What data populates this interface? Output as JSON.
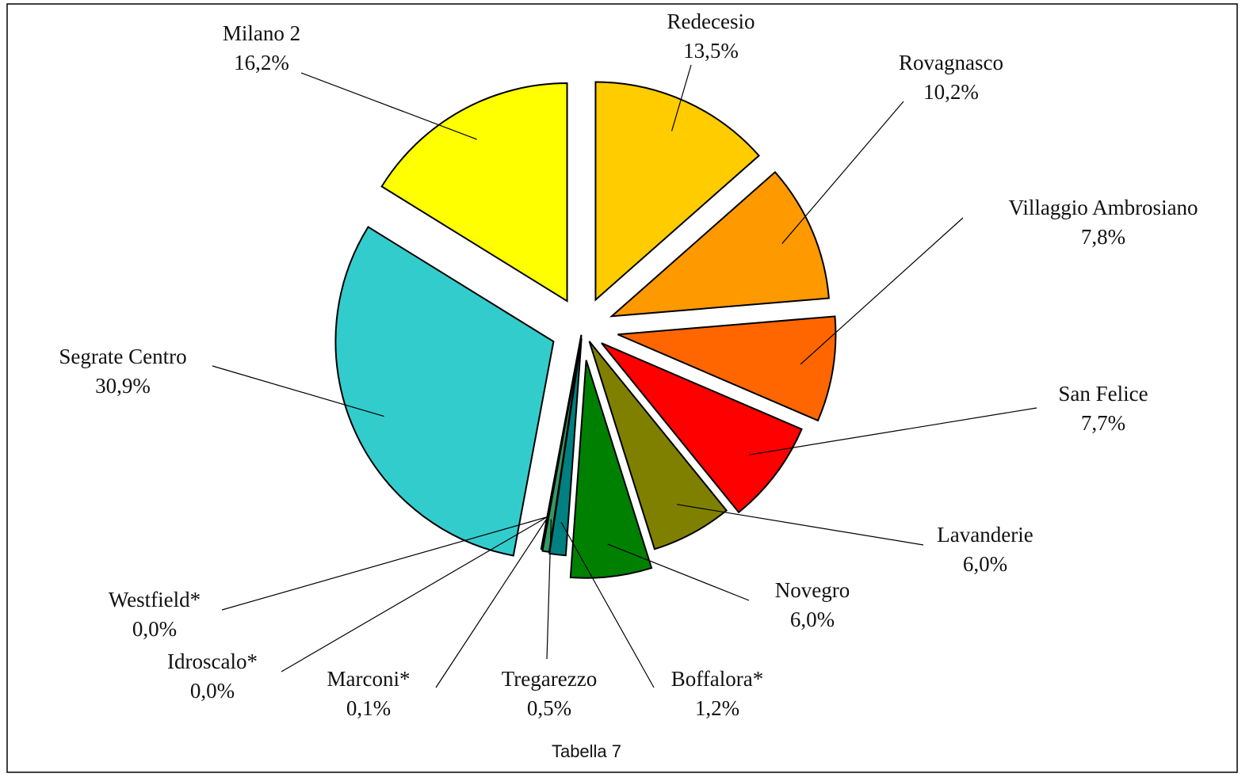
{
  "chart_data": {
    "type": "pie",
    "caption": "Tabella 7",
    "categories": [
      "Redecesio",
      "Rovagnasco",
      "Villaggio Ambrosiano",
      "San Felice",
      "Lavanderie",
      "Novegro",
      "Boffalora*",
      "Tregarezzo",
      "Marconi*",
      "Idroscalo*",
      "Westfield*",
      "Segrate Centro",
      "Milano 2"
    ],
    "values": [
      13.5,
      10.2,
      7.8,
      7.7,
      6.0,
      6.0,
      1.2,
      0.5,
      0.1,
      0.0,
      0.0,
      30.9,
      16.2
    ],
    "value_labels": [
      "13,5%",
      "10,2%",
      "7,8%",
      "7,7%",
      "6,0%",
      "6,0%",
      "1,2%",
      "0,5%",
      "0,1%",
      "0,0%",
      "0,0%",
      "30,9%",
      "16,2%"
    ],
    "colors": [
      "#FFCC00",
      "#FF9900",
      "#FF6600",
      "#FF0000",
      "#808000",
      "#008000",
      "#008080",
      "#339966",
      "#99CC00",
      "#66CC66",
      "#CCFFCC",
      "#33CCCC",
      "#FFFF00"
    ]
  }
}
